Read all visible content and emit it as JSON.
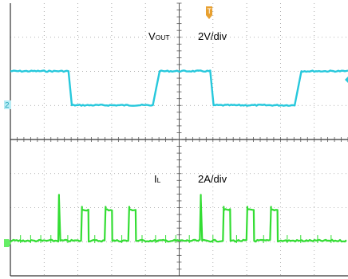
{
  "chart_data": {
    "type": "line",
    "channels": [
      {
        "id": "vout",
        "label_main": "V",
        "label_sub": "OUT",
        "scale": "2V/div",
        "marker": "2",
        "color": "#27c8dc",
        "levels": {
          "high": 3,
          "low": 0
        },
        "transitions": [
          {
            "t": 0.0,
            "v": "high"
          },
          {
            "t": 1.72,
            "v": "high"
          },
          {
            "t": 1.82,
            "v": "low"
          },
          {
            "t": 4.22,
            "v": "low"
          },
          {
            "t": 4.42,
            "v": "high"
          },
          {
            "t": 5.92,
            "v": "high"
          },
          {
            "t": 6.02,
            "v": "low"
          },
          {
            "t": 8.42,
            "v": "low"
          },
          {
            "t": 8.62,
            "v": "high"
          },
          {
            "t": 10.0,
            "v": "high"
          }
        ]
      },
      {
        "id": "il",
        "label_main": "I",
        "label_sub": "L",
        "scale": "2A/div",
        "color": "#33dd33",
        "pulses": [
          {
            "start": 1.44,
            "end": 1.48,
            "height": 2.7
          },
          {
            "start": 2.12,
            "end": 2.32,
            "height": 2.0
          },
          {
            "start": 2.82,
            "end": 3.02,
            "height": 2.0
          },
          {
            "start": 3.52,
            "end": 3.72,
            "height": 2.0
          },
          {
            "start": 5.64,
            "end": 5.68,
            "height": 2.7
          },
          {
            "start": 6.32,
            "end": 6.52,
            "height": 2.0
          },
          {
            "start": 7.02,
            "end": 7.22,
            "height": 2.0
          },
          {
            "start": 7.72,
            "end": 7.92,
            "height": 2.0
          }
        ]
      }
    ],
    "trigger_marker": "T",
    "divisions": {
      "x": 10,
      "y": 8
    }
  }
}
